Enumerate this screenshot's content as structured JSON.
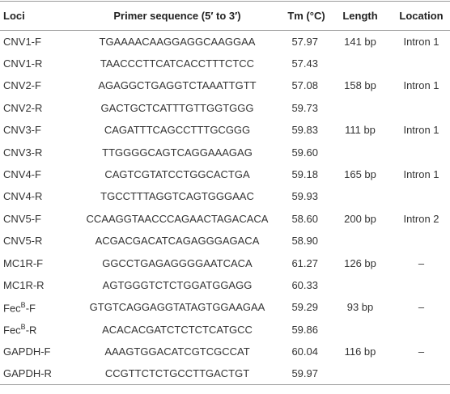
{
  "table": {
    "header": [
      "Loci",
      "Primer sequence (5′ to 3′)",
      "Tm (°C)",
      "Length",
      "Location"
    ],
    "rows": [
      {
        "loci": "CNV1-F",
        "sequence": "TGAAAACAAGGAGGCAAGGAA",
        "tm": "57.97",
        "length": "141 bp",
        "location": "Intron 1"
      },
      {
        "loci": "CNV1-R",
        "sequence": "TAACCCTTCATCACCTTTCTCC",
        "tm": "57.43"
      },
      {
        "loci": "CNV2-F",
        "sequence": "AGAGGCTGAGGTCTAAATTGTT",
        "tm": "57.08",
        "length": "158 bp",
        "location": "Intron 1"
      },
      {
        "loci": "CNV2-R",
        "sequence": "GACTGCTCATTTGTTGGTGGG",
        "tm": "59.73"
      },
      {
        "loci": "CNV3-F",
        "sequence": "CAGATTTCAGCCTTTGCGGG",
        "tm": "59.83",
        "length": "111 bp",
        "location": "Intron 1"
      },
      {
        "loci": "CNV3-R",
        "sequence": "TTGGGGCAGTCAGGAAAGAG",
        "tm": "59.60"
      },
      {
        "loci": "CNV4-F",
        "sequence": "CAGTCGTATCCTGGCACTGA",
        "tm": "59.18",
        "length": "165 bp",
        "location": "Intron 1"
      },
      {
        "loci": "CNV4-R",
        "sequence": "TGCCTTTAGGTCAGTGGGAAC",
        "tm": "59.93"
      },
      {
        "loci": "CNV5-F",
        "sequence": "CCAAGGTAACCCAGAACTAGACACA",
        "tm": "58.60",
        "length": "200 bp",
        "location": "Intron 2"
      },
      {
        "loci": "CNV5-R",
        "sequence": "ACGACGACATCAGAGGGAGACA",
        "tm": "58.90"
      },
      {
        "loci": "MC1R-F",
        "sequence": "GGCCTGAGAGGGGAATCACA",
        "tm": "61.27",
        "length": "126 bp",
        "location": "–"
      },
      {
        "loci": "MC1R-R",
        "sequence": "AGTGGGTCTCTGGATGGAGG",
        "tm": "60.33"
      },
      {
        "loci": "Fec",
        "loci_sup": "B",
        "loci_suffix": "-F",
        "sequence": "GTGTCAGGAGGTATAGTGGAAGAA",
        "tm": "59.29",
        "length": "93 bp",
        "location": "–"
      },
      {
        "loci": "Fec",
        "loci_sup": "B",
        "loci_suffix": "-R",
        "sequence": "ACACACGATCTCTCTCATGCC",
        "tm": "59.86"
      },
      {
        "loci": "GAPDH-F",
        "sequence": "AAAGTGGACATCGTCGCCAT",
        "tm": "60.04",
        "length": "116 bp",
        "location": "–"
      },
      {
        "loci": "GAPDH-R",
        "sequence": "CCGTTCTCTGCCTTGACTGT",
        "tm": "59.97"
      }
    ]
  }
}
